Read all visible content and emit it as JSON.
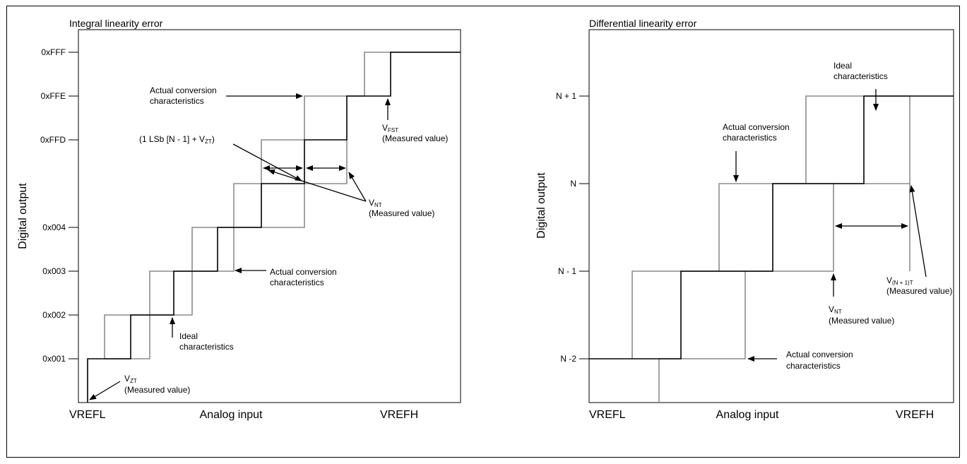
{
  "left": {
    "title": "Integral linearity error",
    "ylabel": "Digital output",
    "xlabel_left": "VREFL",
    "xlabel_mid": "Analog input",
    "xlabel_right": "VREFH",
    "yticks": [
      "0xFFF",
      "0xFFE",
      "0xFFD",
      "0x004",
      "0x003",
      "0x002",
      "0x001"
    ],
    "ann_actual_top_1": "Actual conversion",
    "ann_actual_top_2": "characteristics",
    "ann_lsb_main": "(1 LSb [N - 1] + V",
    "ann_lsb_sub": "ZT",
    "ann_lsb_end": ")",
    "ann_vfst_main": "V",
    "ann_vfst_sub": "FST",
    "ann_vfst_note": "(Measured value)",
    "ann_vnt_main": "V",
    "ann_vnt_sub": "NT",
    "ann_vnt_note": "(Measured value)",
    "ann_actual_bot_1": "Actual conversion",
    "ann_actual_bot_2": "characteristics",
    "ann_ideal_1": "Ideal",
    "ann_ideal_2": "characteristics",
    "ann_vzt_main": "V",
    "ann_vzt_sub": "ZT",
    "ann_vzt_note": "(Measured value)"
  },
  "right": {
    "title": "Differential linearity error",
    "ylabel": "Digital output",
    "xlabel_left": "VREFL",
    "xlabel_mid": "Analog input",
    "xlabel_right": "VREFH",
    "yticks": [
      "N + 1",
      "N",
      "N - 1",
      "N -2"
    ],
    "ann_ideal_1": "Ideal",
    "ann_ideal_2": "characteristics",
    "ann_actual_top_1": "Actual conversion",
    "ann_actual_top_2": "characteristics",
    "ann_vn1t_main": "V",
    "ann_vn1t_sub": "(N + 1)T",
    "ann_vn1t_note": "(Measured value)",
    "ann_vnt_main": "V",
    "ann_vnt_sub": "NT",
    "ann_vnt_note": "(Measured value)",
    "ann_actual_bot_1": "Actual conversion",
    "ann_actual_bot_2": "characteristics"
  },
  "colors": {
    "ideal": "#000000",
    "actual": "#8c8c8c"
  }
}
